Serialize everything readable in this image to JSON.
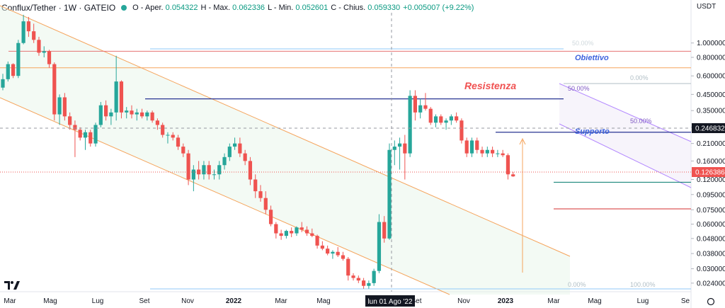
{
  "header": {
    "symbol": "Conflux/Tether · 1W · GATEIO",
    "open_label": "O",
    "open_name": "Aper.",
    "open": "0.054322",
    "high_label": "H",
    "high_name": "Max.",
    "high": "0.062336",
    "low_label": "L",
    "low_name": "Min.",
    "low": "0.052601",
    "close_label": "C",
    "close_name": "Chius.",
    "close": "0.059330",
    "change": "+0.005007 (+9.22%)",
    "currency": "USDT"
  },
  "crosshair": {
    "x_label": "lun 01 Ago '22",
    "price_label": "0.246832"
  },
  "last_price_label": "0.126386",
  "colors": {
    "up": "#26a69a",
    "down": "#ef5350",
    "channel": "#f5a45c",
    "purple": "#b388ff",
    "navy": "#283593",
    "crimson": "#d32f2f",
    "fib": "#90caf9",
    "title_red": "#f05252",
    "title_blue": "#3e63dd"
  },
  "annotations": {
    "resistenza": "Resistenza",
    "supporto": "Supporto",
    "obiettivo": "Obiettivo",
    "fib_50_a": "50.00%",
    "fib_50_b": "50.00%",
    "fib_0_top": "0.00%",
    "fib_0_bottom": "0.00%",
    "fib_100": "100.00%",
    "fib_top_faded": "50.00%"
  },
  "chart_data": {
    "type": "candlestick",
    "yscale": "log",
    "ylim": [
      0.021,
      1.6
    ],
    "y_ticks": [
      "1.000000",
      "0.800000",
      "0.600000",
      "0.450000",
      "0.350000",
      "0.270000",
      "0.210000",
      "0.160000",
      "0.120000",
      "0.095000",
      "0.075000",
      "0.060000",
      "0.048000",
      "0.038000",
      "0.030000",
      "0.024000"
    ],
    "x_ticks": [
      "Mar",
      "Mag",
      "Lug",
      "Set",
      "Nov",
      "2022",
      "Mar",
      "Mag",
      "Lug",
      "Set",
      "Nov",
      "2023",
      "Mar",
      "Mag",
      "Lug",
      "Se"
    ],
    "candles": [
      {
        "o": 0.5,
        "h": 0.62,
        "l": 0.48,
        "c": 0.57
      },
      {
        "o": 0.57,
        "h": 0.75,
        "l": 0.55,
        "c": 0.72
      },
      {
        "o": 0.72,
        "h": 0.73,
        "l": 0.58,
        "c": 0.6
      },
      {
        "o": 0.6,
        "h": 1.05,
        "l": 0.58,
        "c": 1.0
      },
      {
        "o": 1.0,
        "h": 1.55,
        "l": 0.98,
        "c": 1.4
      },
      {
        "o": 1.4,
        "h": 1.5,
        "l": 1.1,
        "c": 1.2
      },
      {
        "o": 1.2,
        "h": 1.35,
        "l": 1.0,
        "c": 1.05
      },
      {
        "o": 1.05,
        "h": 1.1,
        "l": 0.82,
        "c": 0.86
      },
      {
        "o": 0.86,
        "h": 0.95,
        "l": 0.8,
        "c": 0.88
      },
      {
        "o": 0.88,
        "h": 0.9,
        "l": 0.68,
        "c": 0.72
      },
      {
        "o": 0.72,
        "h": 0.74,
        "l": 0.3,
        "c": 0.33
      },
      {
        "o": 0.33,
        "h": 0.45,
        "l": 0.28,
        "c": 0.43
      },
      {
        "o": 0.43,
        "h": 0.46,
        "l": 0.3,
        "c": 0.32
      },
      {
        "o": 0.32,
        "h": 0.34,
        "l": 0.26,
        "c": 0.28
      },
      {
        "o": 0.28,
        "h": 0.3,
        "l": 0.17,
        "c": 0.26
      },
      {
        "o": 0.26,
        "h": 0.27,
        "l": 0.22,
        "c": 0.23
      },
      {
        "o": 0.23,
        "h": 0.26,
        "l": 0.19,
        "c": 0.25
      },
      {
        "o": 0.25,
        "h": 0.26,
        "l": 0.2,
        "c": 0.21
      },
      {
        "o": 0.21,
        "h": 0.29,
        "l": 0.2,
        "c": 0.28
      },
      {
        "o": 0.28,
        "h": 0.4,
        "l": 0.27,
        "c": 0.38
      },
      {
        "o": 0.38,
        "h": 0.41,
        "l": 0.3,
        "c": 0.32
      },
      {
        "o": 0.32,
        "h": 0.36,
        "l": 0.28,
        "c": 0.34
      },
      {
        "o": 0.34,
        "h": 0.82,
        "l": 0.3,
        "c": 0.55
      },
      {
        "o": 0.55,
        "h": 0.56,
        "l": 0.31,
        "c": 0.34
      },
      {
        "o": 0.34,
        "h": 0.37,
        "l": 0.31,
        "c": 0.35
      },
      {
        "o": 0.35,
        "h": 0.38,
        "l": 0.31,
        "c": 0.33
      },
      {
        "o": 0.33,
        "h": 0.36,
        "l": 0.3,
        "c": 0.34
      },
      {
        "o": 0.34,
        "h": 0.36,
        "l": 0.31,
        "c": 0.32
      },
      {
        "o": 0.32,
        "h": 0.35,
        "l": 0.3,
        "c": 0.34
      },
      {
        "o": 0.34,
        "h": 0.35,
        "l": 0.29,
        "c": 0.3
      },
      {
        "o": 0.3,
        "h": 0.31,
        "l": 0.26,
        "c": 0.28
      },
      {
        "o": 0.28,
        "h": 0.29,
        "l": 0.23,
        "c": 0.24
      },
      {
        "o": 0.24,
        "h": 0.25,
        "l": 0.21,
        "c": 0.24
      },
      {
        "o": 0.24,
        "h": 0.25,
        "l": 0.22,
        "c": 0.23
      },
      {
        "o": 0.23,
        "h": 0.24,
        "l": 0.19,
        "c": 0.2
      },
      {
        "o": 0.2,
        "h": 0.21,
        "l": 0.17,
        "c": 0.18
      },
      {
        "o": 0.18,
        "h": 0.19,
        "l": 0.11,
        "c": 0.12
      },
      {
        "o": 0.12,
        "h": 0.15,
        "l": 0.1,
        "c": 0.14
      },
      {
        "o": 0.14,
        "h": 0.16,
        "l": 0.12,
        "c": 0.13
      },
      {
        "o": 0.13,
        "h": 0.16,
        "l": 0.12,
        "c": 0.15
      },
      {
        "o": 0.15,
        "h": 0.16,
        "l": 0.12,
        "c": 0.13
      },
      {
        "o": 0.13,
        "h": 0.14,
        "l": 0.12,
        "c": 0.13
      },
      {
        "o": 0.13,
        "h": 0.16,
        "l": 0.12,
        "c": 0.15
      },
      {
        "o": 0.15,
        "h": 0.18,
        "l": 0.14,
        "c": 0.17
      },
      {
        "o": 0.17,
        "h": 0.21,
        "l": 0.16,
        "c": 0.2
      },
      {
        "o": 0.2,
        "h": 0.23,
        "l": 0.19,
        "c": 0.21
      },
      {
        "o": 0.21,
        "h": 0.23,
        "l": 0.17,
        "c": 0.18
      },
      {
        "o": 0.18,
        "h": 0.19,
        "l": 0.15,
        "c": 0.16
      },
      {
        "o": 0.16,
        "h": 0.17,
        "l": 0.11,
        "c": 0.12
      },
      {
        "o": 0.12,
        "h": 0.13,
        "l": 0.09,
        "c": 0.1
      },
      {
        "o": 0.1,
        "h": 0.11,
        "l": 0.085,
        "c": 0.09
      },
      {
        "o": 0.09,
        "h": 0.1,
        "l": 0.07,
        "c": 0.075
      },
      {
        "o": 0.075,
        "h": 0.08,
        "l": 0.058,
        "c": 0.06
      },
      {
        "o": 0.06,
        "h": 0.062,
        "l": 0.048,
        "c": 0.052
      },
      {
        "o": 0.052,
        "h": 0.055,
        "l": 0.047,
        "c": 0.05
      },
      {
        "o": 0.05,
        "h": 0.055,
        "l": 0.048,
        "c": 0.054
      },
      {
        "o": 0.054,
        "h": 0.057,
        "l": 0.049,
        "c": 0.052
      },
      {
        "o": 0.052,
        "h": 0.058,
        "l": 0.05,
        "c": 0.057
      },
      {
        "o": 0.057,
        "h": 0.062,
        "l": 0.053,
        "c": 0.055
      },
      {
        "o": 0.055,
        "h": 0.058,
        "l": 0.05,
        "c": 0.052
      },
      {
        "o": 0.052,
        "h": 0.056,
        "l": 0.049,
        "c": 0.05
      },
      {
        "o": 0.05,
        "h": 0.051,
        "l": 0.041,
        "c": 0.043
      },
      {
        "o": 0.043,
        "h": 0.046,
        "l": 0.04,
        "c": 0.041
      },
      {
        "o": 0.041,
        "h": 0.043,
        "l": 0.037,
        "c": 0.038
      },
      {
        "o": 0.038,
        "h": 0.04,
        "l": 0.035,
        "c": 0.039
      },
      {
        "o": 0.039,
        "h": 0.042,
        "l": 0.036,
        "c": 0.037
      },
      {
        "o": 0.037,
        "h": 0.039,
        "l": 0.034,
        "c": 0.035
      },
      {
        "o": 0.035,
        "h": 0.036,
        "l": 0.025,
        "c": 0.027
      },
      {
        "o": 0.027,
        "h": 0.028,
        "l": 0.025,
        "c": 0.026
      },
      {
        "o": 0.026,
        "h": 0.027,
        "l": 0.024,
        "c": 0.025
      },
      {
        "o": 0.025,
        "h": 0.026,
        "l": 0.022,
        "c": 0.023
      },
      {
        "o": 0.023,
        "h": 0.025,
        "l": 0.022,
        "c": 0.024
      },
      {
        "o": 0.024,
        "h": 0.03,
        "l": 0.023,
        "c": 0.029
      },
      {
        "o": 0.029,
        "h": 0.07,
        "l": 0.028,
        "c": 0.062
      },
      {
        "o": 0.062,
        "h": 0.068,
        "l": 0.045,
        "c": 0.048
      },
      {
        "o": 0.048,
        "h": 0.21,
        "l": 0.047,
        "c": 0.19
      },
      {
        "o": 0.19,
        "h": 0.22,
        "l": 0.15,
        "c": 0.2
      },
      {
        "o": 0.2,
        "h": 0.23,
        "l": 0.14,
        "c": 0.21
      },
      {
        "o": 0.21,
        "h": 0.24,
        "l": 0.12,
        "c": 0.18
      },
      {
        "o": 0.18,
        "h": 0.48,
        "l": 0.17,
        "c": 0.44
      },
      {
        "o": 0.44,
        "h": 0.48,
        "l": 0.3,
        "c": 0.34
      },
      {
        "o": 0.34,
        "h": 0.42,
        "l": 0.31,
        "c": 0.38
      },
      {
        "o": 0.38,
        "h": 0.46,
        "l": 0.35,
        "c": 0.36
      },
      {
        "o": 0.36,
        "h": 0.37,
        "l": 0.28,
        "c": 0.29
      },
      {
        "o": 0.29,
        "h": 0.33,
        "l": 0.27,
        "c": 0.32
      },
      {
        "o": 0.32,
        "h": 0.33,
        "l": 0.28,
        "c": 0.29
      },
      {
        "o": 0.29,
        "h": 0.31,
        "l": 0.26,
        "c": 0.3
      },
      {
        "o": 0.3,
        "h": 0.33,
        "l": 0.28,
        "c": 0.32
      },
      {
        "o": 0.32,
        "h": 0.34,
        "l": 0.29,
        "c": 0.3
      },
      {
        "o": 0.3,
        "h": 0.31,
        "l": 0.21,
        "c": 0.22
      },
      {
        "o": 0.22,
        "h": 0.23,
        "l": 0.17,
        "c": 0.18
      },
      {
        "o": 0.18,
        "h": 0.23,
        "l": 0.17,
        "c": 0.22
      },
      {
        "o": 0.22,
        "h": 0.23,
        "l": 0.18,
        "c": 0.19
      },
      {
        "o": 0.19,
        "h": 0.2,
        "l": 0.17,
        "c": 0.18
      },
      {
        "o": 0.18,
        "h": 0.2,
        "l": 0.17,
        "c": 0.19
      },
      {
        "o": 0.19,
        "h": 0.2,
        "l": 0.17,
        "c": 0.18
      },
      {
        "o": 0.18,
        "h": 0.19,
        "l": 0.17,
        "c": 0.18
      },
      {
        "o": 0.18,
        "h": 0.19,
        "l": 0.17,
        "c": 0.175
      },
      {
        "o": 0.175,
        "h": 0.18,
        "l": 0.12,
        "c": 0.13
      },
      {
        "o": 0.13,
        "h": 0.135,
        "l": 0.125,
        "c": 0.126
      }
    ],
    "levels": [
      {
        "price": 0.88,
        "color": "#e57373"
      },
      {
        "price": 0.68,
        "color": "#f5a45c"
      },
      {
        "price": 0.42,
        "color": "#283593"
      },
      {
        "price": 0.25,
        "color": "#283593"
      },
      {
        "price": 0.115,
        "color": "#00796b"
      },
      {
        "price": 0.076,
        "color": "#d32f2f"
      }
    ]
  }
}
